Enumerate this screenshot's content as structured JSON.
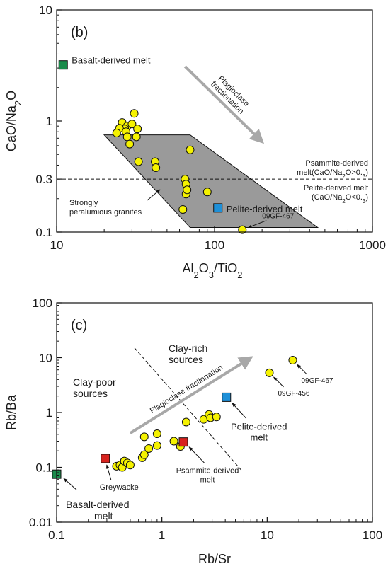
{
  "colors": {
    "marker_yellow": "#f5f200",
    "basalt_green": "#1a8a4a",
    "pelite_blue": "#1e90d8",
    "psammite_red": "#d8231e",
    "field_gray": "#9a9a9a",
    "arrow_gray": "#a8a8a8"
  },
  "chart_data": [
    {
      "type": "scatter",
      "panel_label": "(b)",
      "xlabel": "Al2O3/TiO2",
      "ylabel": "CaO/Na2O",
      "xscale": "log",
      "yscale": "log",
      "xlim": [
        10,
        1000
      ],
      "ylim": [
        0.1,
        10
      ],
      "x_ticks": [
        {
          "value": 10,
          "label": "10"
        },
        {
          "value": 100,
          "label": "100"
        },
        {
          "value": 1000,
          "label": "1000"
        }
      ],
      "y_ticks": [
        {
          "value": 0.1,
          "label": "0.1"
        },
        {
          "value": 0.3,
          "label": "0.3"
        },
        {
          "value": 1,
          "label": "1"
        },
        {
          "value": 10,
          "label": "10"
        }
      ],
      "field": {
        "label_lines": [
          "Strongly",
          "peralumious granites"
        ],
        "polygon": [
          [
            20,
            0.75
          ],
          [
            70,
            0.75
          ],
          [
            450,
            0.11
          ],
          [
            70,
            0.11
          ]
        ]
      },
      "reference_line": {
        "y": 0.3,
        "style": "dashed",
        "label_above": [
          "Psammite-derived",
          "melt(CaO/Na2O>0.3)"
        ],
        "label_below": [
          "Pelite-derived melt",
          "(CaO/Na2O<0.3)"
        ]
      },
      "trend_arrow": {
        "label_lines": [
          "Plagioclase",
          "fractionation"
        ],
        "from": [
          65,
          3.1
        ],
        "to": [
          200,
          0.65
        ]
      },
      "samples": [
        {
          "x": 31,
          "y": 1.17
        },
        {
          "x": 26,
          "y": 0.97
        },
        {
          "x": 28,
          "y": 0.9
        },
        {
          "x": 27,
          "y": 0.85
        },
        {
          "x": 30,
          "y": 0.94
        },
        {
          "x": 25,
          "y": 0.86
        },
        {
          "x": 24,
          "y": 0.78
        },
        {
          "x": 27.5,
          "y": 0.8
        },
        {
          "x": 28,
          "y": 0.72
        },
        {
          "x": 32,
          "y": 0.72
        },
        {
          "x": 29,
          "y": 0.62
        },
        {
          "x": 32.5,
          "y": 0.85
        },
        {
          "x": 33,
          "y": 0.43
        },
        {
          "x": 42,
          "y": 0.43
        },
        {
          "x": 42.5,
          "y": 0.38
        },
        {
          "x": 70,
          "y": 0.55
        },
        {
          "x": 65,
          "y": 0.3
        },
        {
          "x": 66,
          "y": 0.27
        },
        {
          "x": 66,
          "y": 0.22
        },
        {
          "x": 67,
          "y": 0.24
        },
        {
          "x": 90,
          "y": 0.23
        },
        {
          "x": 63,
          "y": 0.16
        },
        {
          "x": 150,
          "y": 0.105
        }
      ],
      "end_members": [
        {
          "name": "Basalt-derived melt",
          "x": 11,
          "y": 3.2,
          "color": "#1a8a4a"
        },
        {
          "name": "Pelite-derived melt",
          "x": 105,
          "y": 0.165,
          "color": "#1e90d8"
        }
      ],
      "annotations": [
        {
          "text": "09GF-467",
          "x": 150,
          "y": 0.105
        }
      ]
    },
    {
      "type": "scatter",
      "panel_label": "(c)",
      "xlabel": "Rb/Sr",
      "ylabel": "Rb/Ba",
      "xscale": "log",
      "yscale": "log",
      "xlim": [
        0.1,
        100
      ],
      "ylim": [
        0.01,
        100
      ],
      "x_ticks": [
        {
          "value": 0.1,
          "label": "0.1"
        },
        {
          "value": 1,
          "label": "1"
        },
        {
          "value": 10,
          "label": "10"
        },
        {
          "value": 100,
          "label": "100"
        }
      ],
      "y_ticks": [
        {
          "value": 0.01,
          "label": "0.01"
        },
        {
          "value": 0.1,
          "label": "0.1"
        },
        {
          "value": 1,
          "label": "1"
        },
        {
          "value": 10,
          "label": "10"
        },
        {
          "value": 100,
          "label": "100"
        }
      ],
      "divider_line": {
        "style": "dashed",
        "from": [
          0.55,
          15
        ],
        "to": [
          5.8,
          0.085
        ]
      },
      "region_labels": [
        {
          "lines": [
            "Clay-rich",
            "sources"
          ]
        },
        {
          "lines": [
            "Clay-poor",
            "sources"
          ]
        }
      ],
      "trend_arrow": {
        "label": "Plagioclase fractionation",
        "from": [
          0.5,
          0.42
        ],
        "to": [
          7,
          10
        ]
      },
      "samples": [
        {
          "x": 0.37,
          "y": 0.105
        },
        {
          "x": 0.4,
          "y": 0.11
        },
        {
          "x": 0.42,
          "y": 0.1
        },
        {
          "x": 0.44,
          "y": 0.13
        },
        {
          "x": 0.47,
          "y": 0.12
        },
        {
          "x": 0.5,
          "y": 0.11
        },
        {
          "x": 0.65,
          "y": 0.15
        },
        {
          "x": 0.68,
          "y": 0.17
        },
        {
          "x": 0.75,
          "y": 0.22
        },
        {
          "x": 0.68,
          "y": 0.36
        },
        {
          "x": 0.9,
          "y": 0.25
        },
        {
          "x": 0.9,
          "y": 0.41
        },
        {
          "x": 1.3,
          "y": 0.3
        },
        {
          "x": 1.5,
          "y": 0.24
        },
        {
          "x": 1.7,
          "y": 0.67
        },
        {
          "x": 2.5,
          "y": 0.75
        },
        {
          "x": 2.8,
          "y": 0.92
        },
        {
          "x": 2.9,
          "y": 0.8
        },
        {
          "x": 3.3,
          "y": 0.83
        },
        {
          "x": 10.5,
          "y": 5.3
        },
        {
          "x": 17.5,
          "y": 9.0
        }
      ],
      "end_members": [
        {
          "name": "Basalt-derived melt",
          "x": 0.1,
          "y": 0.075,
          "color": "#1a8a4a"
        },
        {
          "name": "Greywacke",
          "x": 0.29,
          "y": 0.145,
          "color": "#d8231e"
        },
        {
          "name": "Psammite-derived melt",
          "x": 1.6,
          "y": 0.29,
          "color": "#d8231e"
        },
        {
          "name": "Pelite-derived melt",
          "x": 4.1,
          "y": 1.9,
          "color": "#1e90d8"
        }
      ],
      "annotations": [
        {
          "text": "09GF-467",
          "x": 17.5,
          "y": 9.0
        },
        {
          "text": "09GF-456",
          "x": 10.5,
          "y": 5.3
        }
      ]
    }
  ]
}
